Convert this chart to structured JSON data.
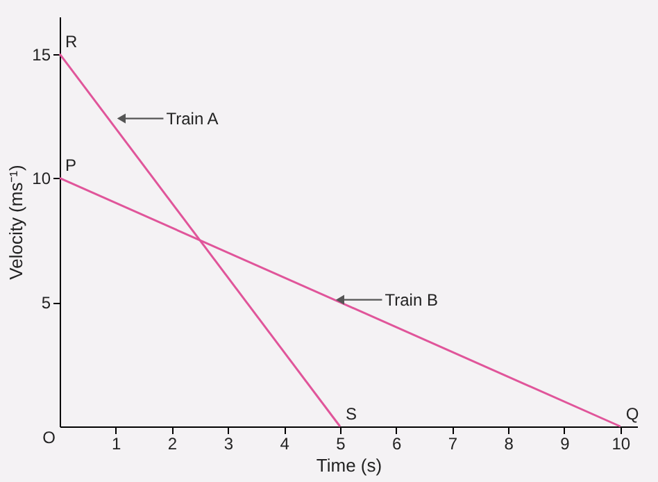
{
  "chart_data": {
    "type": "line",
    "xlabel": "Time (s)",
    "ylabel": "Velocity (ms⁻¹)",
    "series": [
      {
        "color": "#e0559a",
        "x": [
          0,
          5
        ],
        "values": [
          15,
          0
        ]
      },
      {
        "color": "#e0559a",
        "x": [
          0,
          10
        ],
        "values": [
          10,
          0
        ]
      }
    ],
    "xlim": [
      0,
      10.3
    ],
    "ylim": [
      0,
      16.5
    ],
    "xticks": [
      1,
      2,
      3,
      4,
      5,
      6,
      7,
      8,
      9,
      10
    ],
    "yticks": [
      5,
      10,
      15
    ],
    "grid": false,
    "marker": "none",
    "line_style": "solid",
    "annotations": [
      {
        "text": "R",
        "x": 0,
        "y": 15
      },
      {
        "text": "P",
        "x": 0,
        "y": 10
      },
      {
        "text": "S",
        "x": 5,
        "y": 0
      },
      {
        "text": "Q",
        "x": 10,
        "y": 0
      },
      "O",
      {
        "text": "Train A",
        "x": 1.1,
        "y": 12.4
      },
      {
        "text": "Train B",
        "x": 5.0,
        "y": 5.1
      }
    ]
  }
}
